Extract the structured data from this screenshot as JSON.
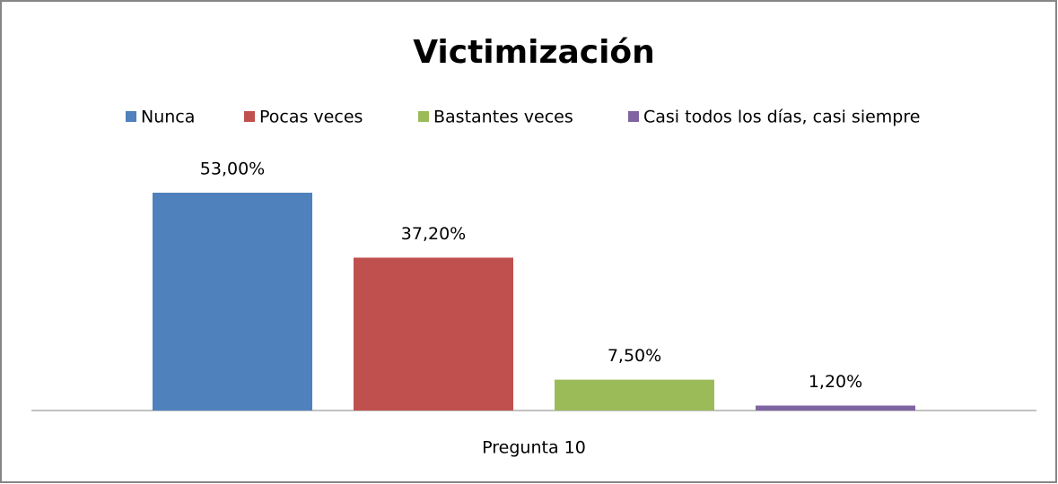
{
  "chart_data": {
    "type": "bar",
    "title": "Victimización",
    "categories": [
      "Pregunta 10"
    ],
    "series": [
      {
        "name": "Nunca",
        "color": "#4f81bd",
        "values": [
          53.0
        ],
        "value_labels": [
          "53,00%"
        ]
      },
      {
        "name": "Pocas veces",
        "color": "#c0504d",
        "values": [
          37.2
        ],
        "value_labels": [
          "37,20%"
        ]
      },
      {
        "name": "Bastantes veces",
        "color": "#9bbb59",
        "values": [
          7.5
        ],
        "value_labels": [
          "7,50%"
        ]
      },
      {
        "name": "Casi todos los días, casi siempre",
        "color": "#8064a2",
        "values": [
          1.2
        ],
        "value_labels": [
          "1,20%"
        ]
      }
    ],
    "legend": "top"
  }
}
